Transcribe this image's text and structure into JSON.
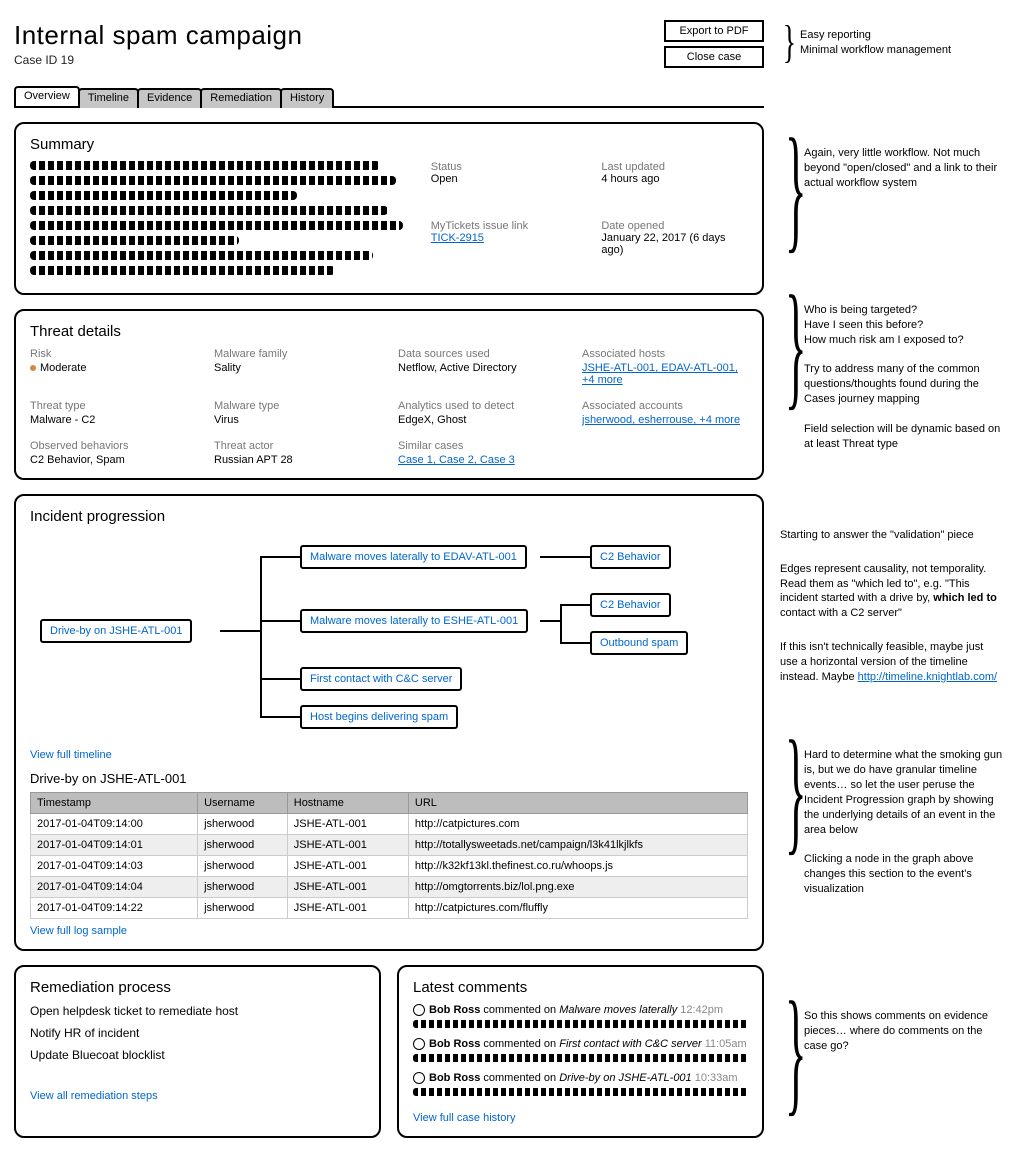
{
  "header": {
    "title": "Internal spam campaign",
    "case_id": "Case ID 19",
    "export_btn": "Export to PDF",
    "close_btn": "Close case"
  },
  "annotations": {
    "header": "Easy reporting\nMinimal workflow management",
    "summary": "Again, very little workflow. Not much beyond \"open/closed\" and a link to their actual workflow system",
    "threat": "Who is being targeted?\nHave I seen this before?\nHow much risk am I exposed to?\n\nTry to address many of the common questions/thoughts found during the Cases journey mapping\n\nField selection will be dynamic based on at least Threat type",
    "progression_1": "Starting to answer the \"validation\" piece",
    "progression_2a": "Edges represent causality, not temporality. Read them as \"which led to\", e.g. \"This incident started with a drive by, ",
    "progression_2b": "which led to",
    "progression_2c": " contact with a C2 server\"",
    "progression_3": "If this isn't technically feasible, maybe just use a horizontal version of the timeline instead. Maybe ",
    "progression_link": "http://timeline.knightlab.com/",
    "logs": "Hard to determine what the smoking gun is, but we do have granular timeline events… so let the user peruse the Incident Progression graph by showing the underlying details of an event in the area below\n\nClicking a node in the graph above changes this section to the event's visualization",
    "comments": "So this shows comments on evidence pieces… where do comments on the case go?"
  },
  "tabs": [
    "Overview",
    "Timeline",
    "Evidence",
    "Remediation",
    "History"
  ],
  "summary": {
    "heading": "Summary",
    "status_label": "Status",
    "status_val": "Open",
    "updated_label": "Last updated",
    "updated_val": "4 hours ago",
    "link_label": "MyTickets issue link",
    "link_val": "TICK-2915",
    "opened_label": "Date opened",
    "opened_val": "January 22, 2017 (6 days ago)"
  },
  "threat": {
    "heading": "Threat details",
    "risk_label": "Risk",
    "risk_val": "Moderate",
    "family_label": "Malware family",
    "family_val": "Sality",
    "sources_label": "Data sources used",
    "sources_val": "Netflow, Active Directory",
    "hosts_label": "Associated hosts",
    "hosts_val": "JSHE-ATL-001, EDAV-ATL-001, +4 more",
    "type_label": "Threat type",
    "type_val": "Malware - C2",
    "mtype_label": "Malware type",
    "mtype_val": "Virus",
    "analytics_label": "Analytics used to detect",
    "analytics_val": "EdgeX, Ghost",
    "accounts_label": "Associated accounts",
    "accounts_val": "jsherwood, esherrouse, +4 more",
    "behaviors_label": "Observed behaviors",
    "behaviors_val": "C2 Behavior, Spam",
    "actor_label": "Threat actor",
    "actor_val": "Russian APT 28",
    "similar_label": "Similar cases",
    "similar_val": "Case 1, Case 2, Case 3"
  },
  "progression": {
    "heading": "Incident progression",
    "view_link": "View full timeline",
    "nodes": {
      "root": "Drive-by on JSHE-ATL-001",
      "edav": "Malware moves laterally to EDAV-ATL-001",
      "eshe": "Malware moves laterally to ESHE-ATL-001",
      "cc": "First contact with C&C server",
      "spam": "Host begins delivering spam",
      "c2a": "C2 Behavior",
      "c2b": "C2 Behavior",
      "out": "Outbound spam"
    }
  },
  "logs": {
    "heading": "Drive-by on JSHE-ATL-001",
    "cols": [
      "Timestamp",
      "Username",
      "Hostname",
      "URL"
    ],
    "rows": [
      [
        "2017-01-04T09:14:00",
        "jsherwood",
        "JSHE-ATL-001",
        "http://catpictures.com"
      ],
      [
        "2017-01-04T09:14:01",
        "jsherwood",
        "JSHE-ATL-001",
        "http://totallysweetads.net/campaign/l3k41lkjlkfs"
      ],
      [
        "2017-01-04T09:14:03",
        "jsherwood",
        "JSHE-ATL-001",
        "http://k32kf13kl.thefinest.co.ru/whoops.js"
      ],
      [
        "2017-01-04T09:14:04",
        "jsherwood",
        "JSHE-ATL-001",
        "http://omgtorrents.biz/lol.png.exe"
      ],
      [
        "2017-01-04T09:14:22",
        "jsherwood",
        "JSHE-ATL-001",
        "http://catpictures.com/fluffly"
      ]
    ],
    "view_link": "View full log sample"
  },
  "remediation": {
    "heading": "Remediation process",
    "items": [
      "Open helpdesk ticket to remediate host",
      "Notify HR of incident",
      "Update Bluecoat blocklist"
    ],
    "view_link": "View all remediation steps"
  },
  "comments": {
    "heading": "Latest comments",
    "items": [
      {
        "who": "Bob Ross",
        "verb": "commented on",
        "on": "Malware moves laterally",
        "time": "12:42pm"
      },
      {
        "who": "Bob Ross",
        "verb": "commented on",
        "on": "First contact with C&C server",
        "time": "11:05am"
      },
      {
        "who": "Bob Ross",
        "verb": "commented on",
        "on": "Drive-by on JSHE-ATL-001",
        "time": "10:33am"
      }
    ],
    "view_link": "View full case history"
  }
}
